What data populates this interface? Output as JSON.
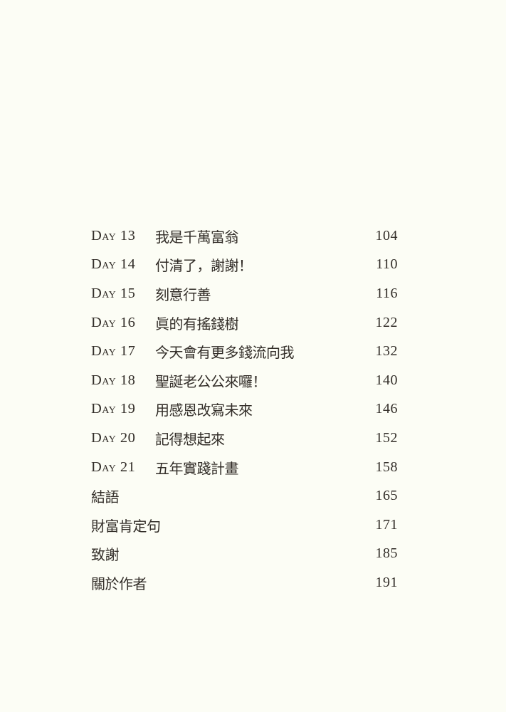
{
  "page": {
    "type": "book-table-of-contents",
    "colors": {
      "background": "#fcfdf5",
      "ink": "#322d28"
    }
  },
  "toc": {
    "entries": [
      {
        "label": "Day 13",
        "title": "我是千萬富翁",
        "page": "104"
      },
      {
        "label": "Day 14",
        "title": "付清了，謝謝！",
        "page": "110"
      },
      {
        "label": "Day 15",
        "title": "刻意行善",
        "page": "116"
      },
      {
        "label": "Day 16",
        "title": "眞的有搖錢樹",
        "page": "122"
      },
      {
        "label": "Day 17",
        "title": "今天會有更多錢流向我",
        "page": "132"
      },
      {
        "label": "Day 18",
        "title": "聖誕老公公來囉！",
        "page": "140"
      },
      {
        "label": "Day 19",
        "title": "用感恩改寫未來",
        "page": "146"
      },
      {
        "label": "Day 20",
        "title": "記得想起來",
        "page": "152"
      },
      {
        "label": "Day 21",
        "title": "五年實踐計畫",
        "page": "158"
      },
      {
        "label": "",
        "title": "結語",
        "page": "165"
      },
      {
        "label": "",
        "title": "財富肯定句",
        "page": "171"
      },
      {
        "label": "",
        "title": "致謝",
        "page": "185"
      },
      {
        "label": "",
        "title": "關於作者",
        "page": "191"
      }
    ]
  }
}
